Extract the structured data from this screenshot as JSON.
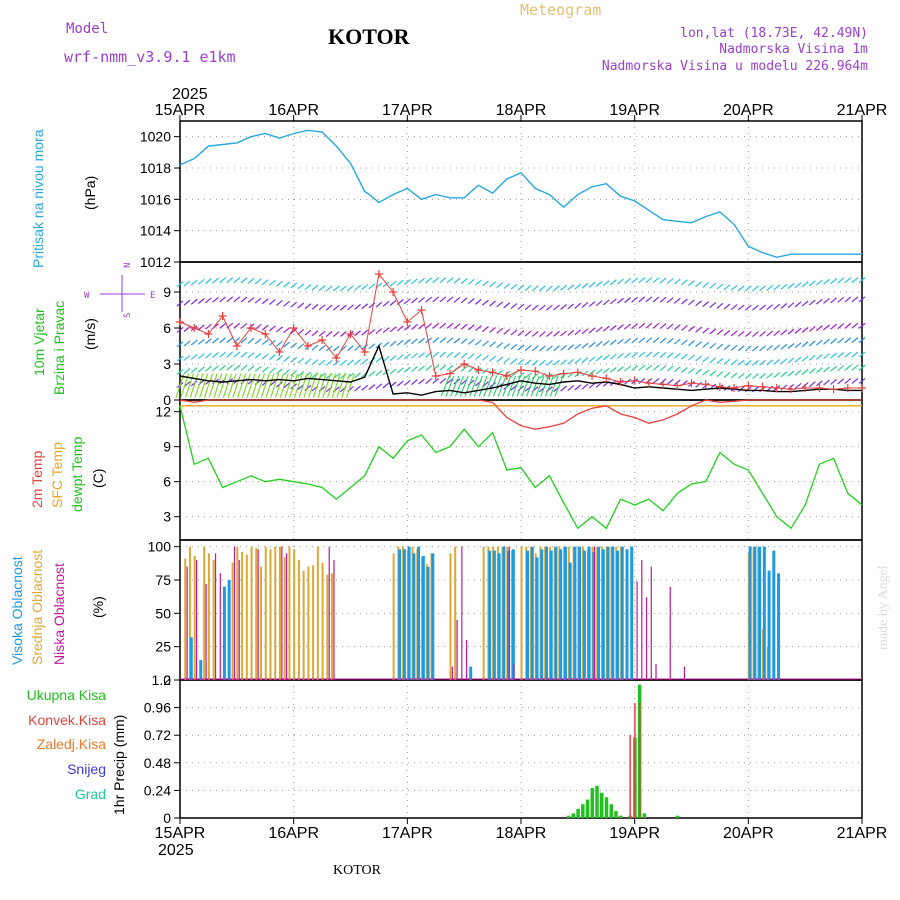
{
  "header": {
    "model_label": "Model",
    "model_name": "wrf-nmm_v3.9.1 e1km",
    "city": "KOTOR",
    "chart_kind": "Meteogram",
    "lonlat": "lon,lat (18.73E, 42.49N)",
    "altitude": "Nadmorska Visina 1m",
    "model_altitude": "Nadmorska Visina u modelu 226.964m",
    "watermark": "made by Angel",
    "footer_city": "KOTOR"
  },
  "time_axis": {
    "year": "2025",
    "ticks": [
      "15APR",
      "16APR",
      "17APR",
      "18APR",
      "19APR",
      "20APR",
      "21APR"
    ]
  },
  "colors": {
    "pressure": "#29a8e0",
    "temp2m": "#e8413c",
    "sfc_temp": "#e8a51c",
    "dewpt": "#22d11e",
    "high_cloud": "#1e9be0",
    "mid_cloud": "#dea835",
    "low_cloud": "#c0199e",
    "total_precip": "#22c01e",
    "conv_precip": "#e8413c",
    "frozen_precip": "#f07a28",
    "snow": "#3a3ad8",
    "graupel": "#1ec8a0",
    "wind_speed_line": "#000000",
    "wind_gust_markers": "#e8413c",
    "model_label": "#9b3fd0",
    "meteogram_label": "#e6c070",
    "info_label": "#9b3fd0"
  },
  "panels": {
    "pressure": {
      "label_main": "Pritisak na nivou mora",
      "unit": "(hPa)",
      "yticks": [
        "1012",
        "1014",
        "1016",
        "1018",
        "1020"
      ]
    },
    "wind": {
      "label_1": "10m Vjetar",
      "label_2": "Brzina i Pravac",
      "unit": "(m/s)",
      "yticks": [
        "0",
        "3",
        "6",
        "9"
      ],
      "compass_w": "W",
      "compass_e": "E",
      "compass_n": "N",
      "compass_s": "S"
    },
    "temp": {
      "label_2m": "2m Temp",
      "label_sfc": "SFC Temp",
      "label_dew": "dewpt Temp",
      "unit": "(C)",
      "yticks": [
        "3",
        "6",
        "9",
        "12"
      ]
    },
    "cloud": {
      "label_high": "Visoka Oblacnost",
      "label_mid": "Srednja Oblacnost",
      "label_low": "Niska Oblacnost",
      "unit": "(%)",
      "yticks": [
        "0",
        "25",
        "50",
        "75",
        "100"
      ]
    },
    "precip": {
      "legend": [
        "Ukupna Kisa",
        "Konvek.Kisa",
        "Zaledj.Kisa",
        "Snijeg",
        "Grad"
      ],
      "unit": "1hr Precip (mm)",
      "yticks": [
        "0",
        "0.24",
        "0.48",
        "0.72",
        "0.96",
        "1.2"
      ]
    }
  },
  "chart_data": [
    {
      "type": "line",
      "name": "pressure",
      "ylim": [
        1012,
        1021
      ],
      "x_hours": [
        0,
        3,
        6,
        9,
        12,
        15,
        18,
        21,
        24,
        27,
        30,
        33,
        36,
        39,
        40,
        42,
        45,
        48,
        51,
        54,
        57,
        60,
        63,
        66,
        69,
        72,
        75,
        78,
        81,
        84,
        87,
        90,
        93,
        96,
        99,
        102,
        105,
        108,
        111,
        114,
        117,
        120,
        123,
        126,
        129,
        132,
        135,
        138,
        141,
        144
      ],
      "values": [
        1018.2,
        1018.6,
        1019.4,
        1019.5,
        1019.6,
        1020.0,
        1020.2,
        1019.9,
        1020.2,
        1020.4,
        1020.3,
        1019.4,
        1018.3,
        1016.5,
        1016.3,
        1015.8,
        1016.3,
        1016.7,
        1016.0,
        1016.3,
        1016.1,
        1016.1,
        1016.9,
        1016.4,
        1017.3,
        1017.7,
        1016.7,
        1016.3,
        1015.5,
        1016.3,
        1016.8,
        1017.0,
        1016.2,
        1015.9,
        1015.3,
        1014.7,
        1014.6,
        1014.5,
        1014.9,
        1015.2,
        1014.4,
        1013.0,
        1012.6,
        1012.3,
        1012.5,
        1012.5,
        1012.5,
        1012.5,
        1012.5,
        1012.5
      ]
    },
    {
      "type": "line",
      "name": "wind",
      "ylim": [
        0,
        11.5
      ],
      "x_hours": [
        0,
        3,
        6,
        9,
        12,
        15,
        18,
        21,
        24,
        27,
        30,
        33,
        36,
        39,
        42,
        45,
        48,
        51,
        54,
        57,
        60,
        63,
        66,
        69,
        72,
        75,
        78,
        81,
        84,
        87,
        90,
        93,
        96,
        99,
        102,
        105,
        108,
        111,
        114,
        117,
        120,
        123,
        126,
        129,
        132,
        135,
        138,
        141,
        144
      ],
      "speed": [
        2.0,
        1.8,
        1.6,
        1.5,
        1.6,
        1.7,
        1.6,
        1.7,
        1.6,
        1.8,
        1.7,
        1.6,
        1.5,
        1.9,
        4.5,
        0.5,
        0.6,
        0.4,
        0.7,
        0.8,
        0.6,
        0.8,
        1.0,
        1.3,
        1.6,
        1.4,
        1.3,
        1.5,
        1.6,
        1.4,
        1.5,
        1.3,
        1.0,
        1.1,
        1.0,
        0.9,
        0.8,
        0.9,
        1.0,
        0.9,
        0.8,
        0.8,
        0.7,
        0.7,
        0.8,
        0.9,
        0.9,
        0.8,
        0.8
      ],
      "gust": [
        6.5,
        6.0,
        5.5,
        7.0,
        4.5,
        6.0,
        5.5,
        4.0,
        6.0,
        4.5,
        5.0,
        3.5,
        5.5,
        4.0,
        10.5,
        9.0,
        6.5,
        7.5,
        2.0,
        2.2,
        3.0,
        2.5,
        2.3,
        2.0,
        2.5,
        2.4,
        2.0,
        2.2,
        2.3,
        2.0,
        1.8,
        1.5,
        1.6,
        1.4,
        1.3,
        1.2,
        1.4,
        1.3,
        1.1,
        1.0,
        1.2,
        1.1,
        1.0,
        0.9,
        1.0,
        1.0,
        0.9,
        1.0,
        1.0
      ]
    },
    {
      "type": "line",
      "name": "temperature",
      "ylim": [
        1,
        13
      ],
      "x_hours": [
        0,
        3,
        6,
        9,
        12,
        15,
        18,
        21,
        24,
        27,
        30,
        33,
        36,
        39,
        42,
        45,
        48,
        51,
        54,
        57,
        60,
        63,
        66,
        69,
        72,
        75,
        78,
        81,
        84,
        87,
        90,
        93,
        96,
        99,
        102,
        105,
        108,
        111,
        114,
        117,
        120,
        123,
        126,
        129,
        132,
        135,
        138,
        141,
        144
      ],
      "temp2m": [
        13.0,
        12.8,
        13.0,
        13.0,
        13.0,
        13.0,
        13.0,
        13.0,
        13.0,
        13.0,
        13.0,
        13.0,
        13.0,
        13.0,
        13.0,
        13.0,
        13.0,
        13.0,
        13.0,
        13.0,
        13.0,
        13.0,
        12.8,
        11.5,
        10.8,
        10.5,
        10.7,
        11.0,
        11.8,
        12.3,
        12.5,
        11.8,
        11.5,
        11.0,
        11.3,
        11.8,
        12.5,
        13.0,
        12.8,
        12.9,
        13.0,
        13.0,
        13.0,
        13.0,
        13.0,
        13.0,
        13.0,
        13.0,
        13.0
      ],
      "sfc_temp": [
        12.5,
        12.5,
        12.5,
        12.5,
        12.5,
        12.5,
        12.5,
        12.5,
        12.5,
        12.5,
        12.5,
        12.5,
        12.5,
        12.5,
        12.5,
        12.5,
        12.5,
        12.5,
        12.5,
        12.5,
        12.5,
        12.5,
        12.5,
        12.5,
        12.5,
        12.5,
        12.5,
        12.5,
        12.5,
        12.5,
        12.5,
        12.5,
        12.5,
        12.5,
        12.5,
        12.5,
        12.5,
        12.5,
        12.5,
        12.5,
        12.5,
        12.5,
        12.5,
        12.5,
        12.5,
        12.5,
        12.5,
        12.5,
        12.5
      ],
      "dewpt": [
        12.5,
        7.5,
        8.0,
        5.5,
        6.0,
        6.5,
        6.0,
        6.2,
        6.0,
        5.8,
        5.5,
        4.5,
        5.5,
        6.5,
        9.0,
        8.0,
        9.5,
        10.0,
        8.5,
        9.0,
        10.5,
        9.0,
        10.2,
        7.0,
        7.2,
        5.5,
        6.5,
        4.2,
        2.0,
        3.0,
        2.0,
        4.5,
        4.0,
        4.5,
        3.5,
        5.0,
        5.8,
        6.0,
        8.5,
        7.5,
        7.0,
        5.0,
        3.0,
        2.0,
        4.0,
        7.5,
        8.0,
        5.0,
        4.0
      ]
    },
    {
      "type": "bar",
      "name": "cloud_cover",
      "ylim": [
        0,
        105
      ],
      "high": [
        [
          2,
          32
        ],
        [
          4,
          15
        ],
        [
          9,
          70
        ],
        [
          10,
          75
        ],
        [
          46,
          98
        ],
        [
          47,
          98
        ],
        [
          48,
          100
        ],
        [
          49,
          95
        ],
        [
          50,
          100
        ],
        [
          51,
          93
        ],
        [
          52,
          85
        ],
        [
          53,
          95
        ],
        [
          61,
          10
        ],
        [
          65,
          97
        ],
        [
          66,
          97
        ],
        [
          67,
          95
        ],
        [
          68,
          100
        ],
        [
          69,
          97
        ],
        [
          70,
          98
        ],
        [
          73,
          97
        ],
        [
          74,
          100
        ],
        [
          75,
          92
        ],
        [
          76,
          98
        ],
        [
          77,
          100
        ],
        [
          78,
          97
        ],
        [
          79,
          100
        ],
        [
          80,
          98
        ],
        [
          81,
          100
        ],
        [
          82,
          88
        ],
        [
          83,
          100
        ],
        [
          84,
          100
        ],
        [
          85,
          97
        ],
        [
          86,
          100
        ],
        [
          87,
          96
        ],
        [
          88,
          100
        ],
        [
          89,
          98
        ],
        [
          90,
          100
        ],
        [
          91,
          100
        ],
        [
          92,
          97
        ],
        [
          93,
          100
        ],
        [
          94,
          98
        ],
        [
          95,
          100
        ],
        [
          120,
          100
        ],
        [
          121,
          100
        ],
        [
          122,
          100
        ],
        [
          123,
          100
        ],
        [
          124,
          82
        ],
        [
          125,
          97
        ],
        [
          126,
          80
        ]
      ],
      "mid": [
        [
          1,
          91
        ],
        [
          2,
          100
        ],
        [
          3,
          93
        ],
        [
          5,
          100
        ],
        [
          6,
          95
        ],
        [
          7,
          90
        ],
        [
          11,
          88
        ],
        [
          12,
          100
        ],
        [
          13,
          96
        ],
        [
          14,
          94
        ],
        [
          15,
          100
        ],
        [
          16,
          99
        ],
        [
          17,
          85
        ],
        [
          18,
          100
        ],
        [
          19,
          98
        ],
        [
          20,
          100
        ],
        [
          21,
          100
        ],
        [
          22,
          92
        ],
        [
          23,
          100
        ],
        [
          24,
          98
        ],
        [
          25,
          90
        ],
        [
          26,
          82
        ],
        [
          27,
          85
        ],
        [
          28,
          86
        ],
        [
          29,
          100
        ],
        [
          30,
          88
        ],
        [
          31,
          79
        ],
        [
          32,
          80
        ],
        [
          45,
          95
        ],
        [
          46,
          100
        ],
        [
          47,
          100
        ],
        [
          48,
          97
        ],
        [
          49,
          100
        ],
        [
          50,
          98
        ],
        [
          51,
          92
        ],
        [
          52,
          87
        ],
        [
          53,
          95
        ],
        [
          57,
          95
        ],
        [
          58,
          100
        ],
        [
          64,
          100
        ],
        [
          65,
          100
        ],
        [
          66,
          100
        ],
        [
          67,
          100
        ],
        [
          68,
          100
        ],
        [
          69,
          100
        ],
        [
          70,
          97
        ],
        [
          72,
          100
        ],
        [
          73,
          100
        ],
        [
          74,
          100
        ],
        [
          75,
          95
        ],
        [
          76,
          100
        ],
        [
          77,
          100
        ],
        [
          78,
          100
        ],
        [
          79,
          100
        ],
        [
          80,
          100
        ],
        [
          81,
          100
        ],
        [
          82,
          100
        ],
        [
          83,
          100
        ],
        [
          84,
          100
        ],
        [
          85,
          100
        ],
        [
          86,
          98
        ],
        [
          87,
          100
        ],
        [
          88,
          100
        ],
        [
          89,
          100
        ],
        [
          90,
          100
        ],
        [
          91,
          100
        ],
        [
          92,
          100
        ],
        [
          93,
          100
        ],
        [
          120,
          95
        ],
        [
          121,
          100
        ],
        [
          122,
          100
        ],
        [
          123,
          38
        ],
        [
          124,
          25
        ]
      ],
      "low": [
        [
          1,
          85
        ],
        [
          3,
          90
        ],
        [
          5,
          72
        ],
        [
          7,
          95
        ],
        [
          8,
          80
        ],
        [
          11,
          100
        ],
        [
          12,
          90
        ],
        [
          16,
          98
        ],
        [
          21,
          100
        ],
        [
          22,
          95
        ],
        [
          31,
          100
        ],
        [
          32,
          90
        ],
        [
          57,
          10
        ],
        [
          58,
          45
        ],
        [
          59,
          100
        ],
        [
          60,
          30
        ],
        [
          69,
          100
        ],
        [
          70,
          12
        ],
        [
          87,
          100
        ],
        [
          96,
          74
        ],
        [
          97,
          90
        ],
        [
          98,
          62
        ],
        [
          99,
          85
        ],
        [
          100,
          12
        ],
        [
          103,
          70
        ],
        [
          106,
          10
        ]
      ]
    },
    {
      "type": "bar",
      "name": "precipitation",
      "ylim": [
        0,
        1.2
      ],
      "total": [
        [
          82,
          0.02
        ],
        [
          83,
          0.04
        ],
        [
          84,
          0.08
        ],
        [
          85,
          0.12
        ],
        [
          86,
          0.16
        ],
        [
          87,
          0.26
        ],
        [
          88,
          0.28
        ],
        [
          89,
          0.22
        ],
        [
          90,
          0.18
        ],
        [
          91,
          0.12
        ],
        [
          92,
          0.06
        ],
        [
          93,
          0.02
        ],
        [
          95,
          0.02
        ],
        [
          96,
          0.7
        ],
        [
          97,
          1.16
        ],
        [
          98,
          0.04
        ],
        [
          105,
          0.02
        ]
      ],
      "convective": [
        [
          95,
          0.72
        ],
        [
          96,
          1.0
        ],
        [
          97,
          1.0
        ]
      ]
    }
  ]
}
